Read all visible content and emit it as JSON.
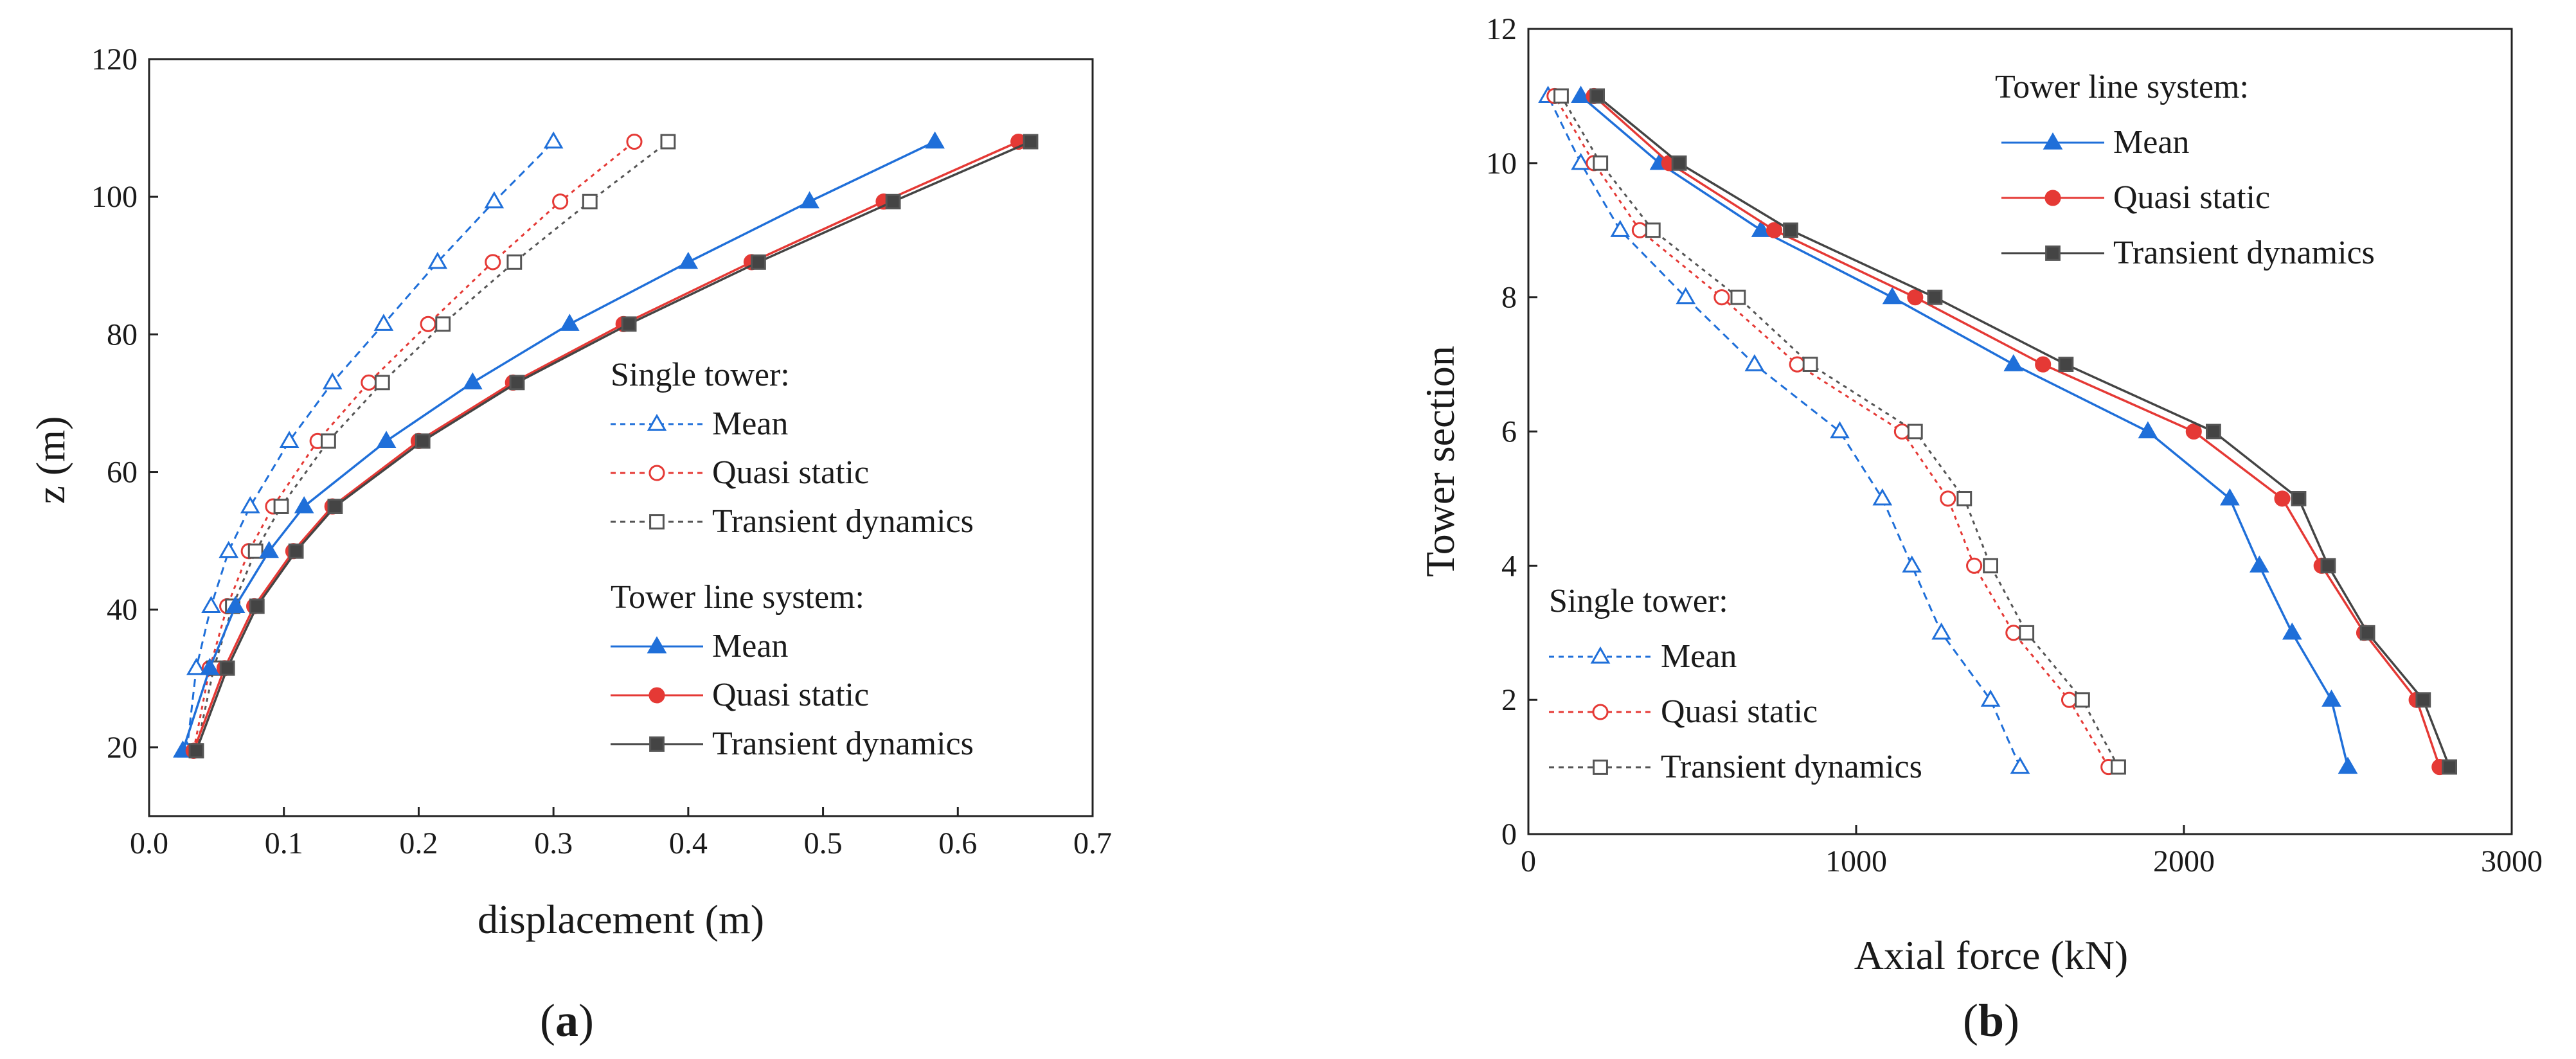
{
  "chart_data": [
    {
      "type": "line",
      "panel_label": "(a)",
      "xlabel": "displacement (m)",
      "ylabel": "z (m)",
      "xlim": [
        0,
        0.7
      ],
      "ylim": [
        10,
        120
      ],
      "xticks": [
        "0.0",
        "0.1",
        "0.2",
        "0.3",
        "0.4",
        "0.5",
        "0.6",
        "0.7"
      ],
      "yticks": [
        "20",
        "40",
        "60",
        "80",
        "100",
        "120"
      ],
      "groups": [
        {
          "title": "Single tower:",
          "series": [
            {
              "name": "Mean",
              "color": "#1f6fd9",
              "marker": "triangle",
              "filled": false,
              "dashed": true,
              "x": [
                0.028,
                0.035,
                0.046,
                0.059,
                0.075,
                0.104,
                0.136,
                0.174,
                0.214,
                0.256,
                0.3
              ],
              "y": [
                19.5,
                31.5,
                40.5,
                48.5,
                55,
                64.5,
                73,
                81.5,
                90.5,
                99.3,
                108
              ]
            },
            {
              "name": "Quasi static",
              "color": "#e53935",
              "marker": "circle",
              "filled": false,
              "dashed": true,
              "x": [
                0.033,
                0.045,
                0.058,
                0.074,
                0.092,
                0.125,
                0.163,
                0.207,
                0.255,
                0.305,
                0.36
              ],
              "y": [
                19.5,
                31.5,
                40.5,
                48.5,
                55,
                64.5,
                73,
                81.5,
                90.5,
                99.3,
                108
              ]
            },
            {
              "name": "Transient dynamics",
              "color": "#555555",
              "marker": "square",
              "filled": false,
              "dashed": true,
              "x": [
                0.035,
                0.048,
                0.062,
                0.079,
                0.098,
                0.133,
                0.173,
                0.218,
                0.271,
                0.327,
                0.385
              ],
              "y": [
                19.5,
                31.5,
                40.5,
                48.5,
                55,
                64.5,
                73,
                81.5,
                90.5,
                99.3,
                108
              ]
            }
          ]
        },
        {
          "title": "Tower line system:",
          "series": [
            {
              "name": "Mean",
              "color": "#1f6fd9",
              "marker": "triangle",
              "filled": true,
              "dashed": false,
              "x": [
                0.025,
                0.045,
                0.064,
                0.089,
                0.115,
                0.176,
                0.24,
                0.312,
                0.4,
                0.49,
                0.583
              ],
              "y": [
                19.5,
                31.5,
                40.5,
                48.5,
                55,
                64.5,
                73,
                81.5,
                90.5,
                99.3,
                108
              ]
            },
            {
              "name": "Quasi static",
              "color": "#e53935",
              "marker": "circle",
              "filled": true,
              "dashed": false,
              "x": [
                0.033,
                0.056,
                0.078,
                0.107,
                0.136,
                0.2,
                0.27,
                0.352,
                0.447,
                0.545,
                0.645
              ],
              "y": [
                19.5,
                31.5,
                40.5,
                48.5,
                55,
                64.5,
                73,
                81.5,
                90.5,
                99.3,
                108
              ]
            },
            {
              "name": "Transient dynamics",
              "color": "#444444",
              "marker": "square",
              "filled": true,
              "dashed": false,
              "x": [
                0.035,
                0.058,
                0.08,
                0.109,
                0.138,
                0.203,
                0.273,
                0.356,
                0.452,
                0.552,
                0.654
              ],
              "y": [
                19.5,
                31.5,
                40.5,
                48.5,
                55,
                64.5,
                73,
                81.5,
                90.5,
                99.3,
                108
              ]
            }
          ]
        }
      ]
    },
    {
      "type": "line",
      "panel_label": "(b)",
      "xlabel": "Axial force (kN)",
      "ylabel": "Tower section",
      "xlim": [
        0,
        3000
      ],
      "ylim": [
        0,
        12
      ],
      "xticks": [
        "0",
        "1000",
        "2000",
        "3000"
      ],
      "yticks": [
        "0",
        "2",
        "4",
        "6",
        "8",
        "10",
        "12"
      ],
      "groups": [
        {
          "title": "Tower line system:",
          "series": [
            {
              "name": "Mean",
              "color": "#1f6fd9",
              "marker": "triangle",
              "filled": true,
              "dashed": false,
              "x": [
                2500,
                2450,
                2330,
                2230,
                2140,
                1890,
                1480,
                1110,
                710,
                400,
                160
              ],
              "y": [
                1,
                2,
                3,
                4,
                5,
                6,
                7,
                8,
                9,
                10,
                11
              ]
            },
            {
              "name": "Quasi static",
              "color": "#e53935",
              "marker": "circle",
              "filled": true,
              "dashed": false,
              "x": [
                2780,
                2710,
                2550,
                2420,
                2300,
                2030,
                1570,
                1180,
                750,
                430,
                200
              ],
              "y": [
                1,
                2,
                3,
                4,
                5,
                6,
                7,
                8,
                9,
                10,
                11
              ]
            },
            {
              "name": "Transient dynamics",
              "color": "#444444",
              "marker": "square",
              "filled": true,
              "dashed": false,
              "x": [
                2810,
                2730,
                2560,
                2440,
                2350,
                2090,
                1640,
                1240,
                800,
                460,
                210
              ],
              "y": [
                1,
                2,
                3,
                4,
                5,
                6,
                7,
                8,
                9,
                10,
                11
              ]
            }
          ]
        },
        {
          "title": "Single tower:",
          "series": [
            {
              "name": "Mean",
              "color": "#1f6fd9",
              "marker": "triangle",
              "filled": false,
              "dashed": true,
              "x": [
                1500,
                1410,
                1260,
                1170,
                1080,
                950,
                690,
                480,
                280,
                160,
                60
              ],
              "y": [
                1,
                2,
                3,
                4,
                5,
                6,
                7,
                8,
                9,
                10,
                11
              ]
            },
            {
              "name": "Quasi static",
              "color": "#e53935",
              "marker": "circle",
              "filled": false,
              "dashed": true,
              "x": [
                1770,
                1650,
                1480,
                1360,
                1280,
                1140,
                820,
                590,
                340,
                200,
                80
              ],
              "y": [
                1,
                2,
                3,
                4,
                5,
                6,
                7,
                8,
                9,
                10,
                11
              ]
            },
            {
              "name": "Transient dynamics",
              "color": "#555555",
              "marker": "square",
              "filled": false,
              "dashed": true,
              "x": [
                1800,
                1690,
                1520,
                1410,
                1330,
                1180,
                860,
                640,
                380,
                220,
                100
              ],
              "y": [
                1,
                2,
                3,
                4,
                5,
                6,
                7,
                8,
                9,
                10,
                11
              ]
            }
          ]
        }
      ]
    }
  ]
}
